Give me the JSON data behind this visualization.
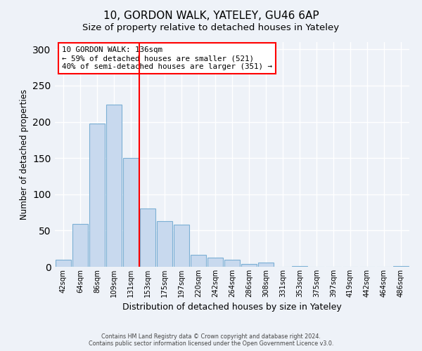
{
  "title": "10, GORDON WALK, YATELEY, GU46 6AP",
  "subtitle": "Size of property relative to detached houses in Yateley",
  "xlabel": "Distribution of detached houses by size in Yateley",
  "ylabel": "Number of detached properties",
  "bar_labels": [
    "42sqm",
    "64sqm",
    "86sqm",
    "109sqm",
    "131sqm",
    "153sqm",
    "175sqm",
    "197sqm",
    "220sqm",
    "242sqm",
    "264sqm",
    "286sqm",
    "308sqm",
    "331sqm",
    "353sqm",
    "375sqm",
    "397sqm",
    "419sqm",
    "442sqm",
    "464sqm",
    "486sqm"
  ],
  "bar_values": [
    10,
    59,
    198,
    224,
    150,
    80,
    63,
    58,
    16,
    13,
    10,
    4,
    6,
    0,
    1,
    0,
    0,
    0,
    0,
    0,
    1
  ],
  "bar_color": "#c8d9ee",
  "bar_edge_color": "#7bafd4",
  "vline_index": 4,
  "vline_color": "red",
  "annotation_title": "10 GORDON WALK: 136sqm",
  "annotation_line1": "← 59% of detached houses are smaller (521)",
  "annotation_line2": "40% of semi-detached houses are larger (351) →",
  "annotation_box_color": "red",
  "ylim": [
    0,
    310
  ],
  "yticks": [
    0,
    50,
    100,
    150,
    200,
    250,
    300
  ],
  "footer1": "Contains HM Land Registry data © Crown copyright and database right 2024.",
  "footer2": "Contains public sector information licensed under the Open Government Licence v3.0.",
  "bg_color": "#eef2f8",
  "title_fontsize": 11,
  "subtitle_fontsize": 9.5
}
